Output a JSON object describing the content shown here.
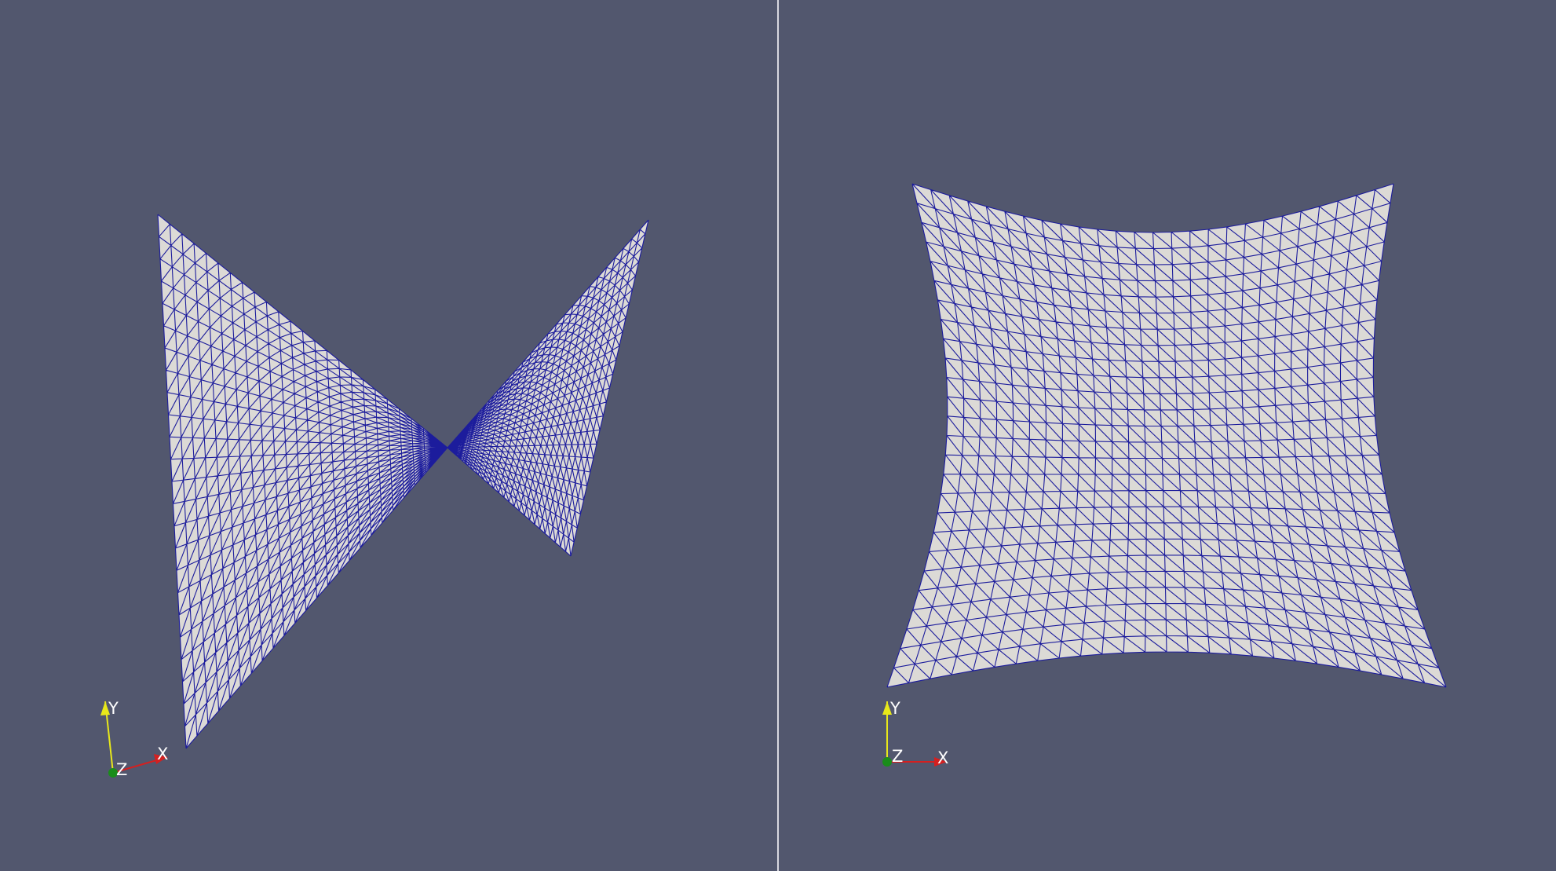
{
  "colors": {
    "background": "#52576e",
    "surface": "#dcdad6",
    "wireframe": "#1c1c9c",
    "axis_x": "#d42020",
    "axis_y": "#e8e81a",
    "axis_z": "#1a8c1a"
  },
  "views": {
    "left": {
      "orientation_axes": {
        "x_label": "X",
        "y_label": "Y",
        "z_label": "Z"
      }
    },
    "right": {
      "orientation_axes": {
        "x_label": "X",
        "y_label": "Y",
        "z_label": "Z"
      }
    }
  }
}
